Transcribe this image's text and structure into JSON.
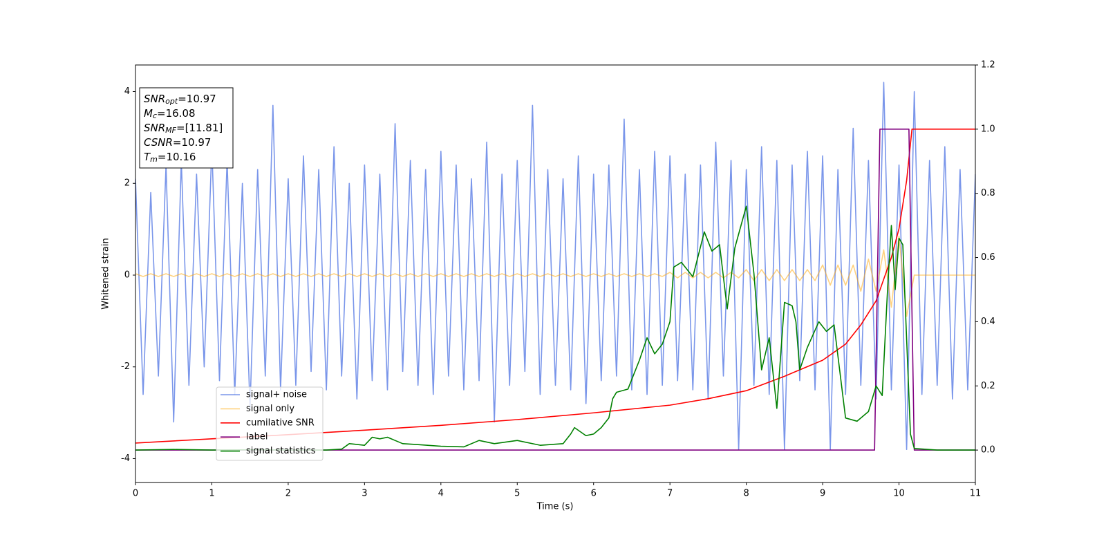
{
  "chart_data": {
    "type": "line",
    "xlabel": "Time (s)",
    "ylabel": "Whitened strain",
    "xlim": [
      0,
      11
    ],
    "xticks": [
      0,
      1,
      2,
      3,
      4,
      5,
      6,
      7,
      8,
      9,
      10,
      11
    ],
    "ylim": [
      -4.52,
      4.58
    ],
    "yticks": [
      -4,
      -2,
      0,
      2,
      4
    ],
    "y2lim": [
      -0.101,
      1.2
    ],
    "y2ticks": [
      {
        "value": 0,
        "label": "0.0"
      },
      0.2,
      0.4,
      0.6,
      0.8,
      {
        "value": 1,
        "label": "1.0"
      },
      1.2
    ],
    "legend_loc": "lower left",
    "annotations": [
      {
        "name": "SNR",
        "sub": "opt",
        "text": "=10.97"
      },
      {
        "name": "M",
        "sub": "c",
        "text": "=16.08"
      },
      {
        "name": "SNR",
        "sub": "MF",
        "text": "=[11.81]"
      },
      {
        "name": "CSNR",
        "text": "=10.97"
      },
      {
        "name": "T",
        "sub": "m",
        "text": "=10.16"
      }
    ],
    "series": [
      {
        "name": "signal+ noise",
        "color": "#4169e1",
        "alpha": 0.7,
        "x": [
          0,
          0.1,
          0.2,
          0.3,
          0.4,
          0.5,
          0.6,
          0.7,
          0.8,
          0.9,
          1,
          1.1,
          1.2,
          1.3,
          1.4,
          1.5,
          1.6,
          1.7,
          1.8,
          1.9,
          2,
          2.1,
          2.2,
          2.3,
          2.4,
          2.5,
          2.6,
          2.7,
          2.8,
          2.9,
          3,
          3.1,
          3.2,
          3.3,
          3.4,
          3.5,
          3.6,
          3.7,
          3.8,
          3.9,
          4,
          4.1,
          4.2,
          4.3,
          4.4,
          4.5,
          4.6,
          4.7,
          4.8,
          4.9,
          5,
          5.1,
          5.2,
          5.3,
          5.4,
          5.5,
          5.6,
          5.7,
          5.8,
          5.9,
          6,
          6.1,
          6.2,
          6.3,
          6.4,
          6.5,
          6.6,
          6.7,
          6.8,
          6.9,
          7,
          7.1,
          7.2,
          7.3,
          7.4,
          7.5,
          7.6,
          7.7,
          7.8,
          7.9,
          8,
          8.1,
          8.2,
          8.3,
          8.4,
          8.5,
          8.6,
          8.7,
          8.8,
          8.9,
          9,
          9.1,
          9.2,
          9.3,
          9.4,
          9.5,
          9.6,
          9.7,
          9.8,
          9.9,
          10,
          10.1,
          10.2,
          10.3,
          10.4,
          10.5,
          10.6,
          10.7,
          10.8,
          10.9,
          11
        ],
        "values": [
          2.1,
          -2.6,
          1.8,
          -2.2,
          2.4,
          -3.2,
          2.5,
          -2.4,
          2.2,
          -2.0,
          2.8,
          -2.3,
          2.5,
          -2.6,
          2.0,
          -2.9,
          2.3,
          -2.2,
          3.7,
          -2.5,
          2.1,
          -2.4,
          2.6,
          -2.1,
          2.3,
          -2.5,
          2.8,
          -2.2,
          2.0,
          -2.7,
          2.4,
          -2.3,
          2.2,
          -2.5,
          3.3,
          -2.1,
          2.5,
          -2.4,
          2.3,
          -2.6,
          2.7,
          -2.2,
          2.4,
          -2.5,
          2.1,
          -2.3,
          2.9,
          -3.2,
          2.2,
          -2.4,
          2.5,
          -2.1,
          3.7,
          -2.6,
          2.3,
          -2.4,
          2.1,
          -2.5,
          2.6,
          -2.8,
          2.2,
          -2.3,
          2.4,
          -2.2,
          3.4,
          -2.5,
          2.3,
          -2.6,
          2.7,
          -2.4,
          2.6,
          -2.3,
          2.2,
          -2.5,
          2.4,
          -2.7,
          2.9,
          -2.2,
          2.5,
          -3.8,
          2.3,
          -2.4,
          2.8,
          -2.6,
          2.5,
          -3.8,
          2.4,
          -2.3,
          2.7,
          -2.5,
          2.6,
          -3.8,
          2.3,
          -2.6,
          3.2,
          -2.4,
          2.5,
          -2.7,
          4.2,
          -2.5,
          2.4,
          -3.8,
          4.0,
          -2.6,
          2.5,
          -2.4,
          2.8,
          -2.7,
          2.3,
          -2.5,
          2.2
        ]
      },
      {
        "name": "signal only",
        "color": "#ffa500",
        "alpha": 0.5,
        "x": [
          0,
          0.1,
          0.2,
          0.3,
          0.4,
          0.5,
          0.6,
          0.7,
          0.8,
          0.9,
          1,
          1.1,
          1.2,
          1.3,
          1.4,
          1.5,
          1.6,
          1.7,
          1.8,
          1.9,
          2,
          2.1,
          2.2,
          2.3,
          2.4,
          2.5,
          2.6,
          2.7,
          2.8,
          2.9,
          3,
          3.1,
          3.2,
          3.3,
          3.4,
          3.5,
          3.6,
          3.7,
          3.8,
          3.9,
          4,
          4.1,
          4.2,
          4.3,
          4.4,
          4.5,
          4.6,
          4.7,
          4.8,
          4.9,
          5,
          5.1,
          5.2,
          5.3,
          5.4,
          5.5,
          5.6,
          5.7,
          5.8,
          5.9,
          6,
          6.1,
          6.2,
          6.3,
          6.4,
          6.5,
          6.6,
          6.7,
          6.8,
          6.9,
          7,
          7.1,
          7.2,
          7.3,
          7.4,
          7.5,
          7.6,
          7.7,
          7.8,
          7.9,
          8,
          8.1,
          8.2,
          8.3,
          8.4,
          8.5,
          8.6,
          8.7,
          8.8,
          8.9,
          9,
          9.1,
          9.2,
          9.3,
          9.4,
          9.5,
          9.6,
          9.7,
          9.8,
          9.9,
          10,
          10.1,
          10.2,
          10.3,
          10.4,
          10.5,
          10.6,
          10.7,
          10.8,
          10.9,
          11
        ],
        "values": [
          0.03,
          -0.03,
          0.03,
          -0.03,
          0.03,
          -0.03,
          0.03,
          -0.03,
          0.03,
          -0.03,
          0.03,
          -0.03,
          0.03,
          -0.03,
          0.03,
          -0.03,
          0.03,
          -0.03,
          0.03,
          -0.03,
          0.03,
          -0.03,
          0.03,
          -0.03,
          0.03,
          -0.03,
          0.03,
          -0.03,
          0.03,
          -0.03,
          0.03,
          -0.03,
          0.03,
          -0.03,
          0.03,
          -0.03,
          0.03,
          -0.03,
          0.03,
          -0.03,
          0.03,
          -0.03,
          0.03,
          -0.03,
          0.03,
          -0.03,
          0.03,
          -0.03,
          0.03,
          -0.03,
          0.03,
          -0.03,
          0.03,
          -0.03,
          0.03,
          -0.03,
          0.03,
          -0.03,
          0.03,
          -0.03,
          0.03,
          -0.03,
          0.03,
          -0.03,
          0.03,
          -0.03,
          0.03,
          -0.03,
          0.03,
          -0.03,
          0.06,
          -0.06,
          0.06,
          -0.06,
          0.06,
          -0.06,
          0.06,
          -0.06,
          0.06,
          -0.06,
          0.12,
          -0.12,
          0.12,
          -0.12,
          0.12,
          -0.12,
          0.12,
          -0.12,
          0.12,
          -0.12,
          0.22,
          -0.22,
          0.22,
          -0.22,
          0.22,
          -0.35,
          0.35,
          -0.35,
          0.55,
          -0.7,
          0.85,
          -0.9,
          0,
          0,
          0,
          0,
          0,
          0,
          0,
          0,
          0
        ]
      },
      {
        "name": "cumilative SNR",
        "color": "#ff0000",
        "axis": "y2",
        "x": [
          0,
          1,
          2,
          3,
          4,
          5,
          6,
          7,
          7.5,
          8,
          8.5,
          9,
          9.3,
          9.5,
          9.7,
          9.9,
          10,
          10.1,
          10.17,
          11
        ],
        "values": [
          0.022,
          0.035,
          0.048,
          0.062,
          0.077,
          0.095,
          0.116,
          0.14,
          0.16,
          0.185,
          0.23,
          0.28,
          0.33,
          0.39,
          0.465,
          0.6,
          0.69,
          0.84,
          1,
          1
        ]
      },
      {
        "name": "label",
        "color": "#800080",
        "axis": "y2",
        "x": [
          0,
          9.68,
          9.75,
          10.13,
          10.2,
          11
        ],
        "values": [
          0,
          0,
          1,
          1,
          0,
          0
        ]
      },
      {
        "name": "signal statistics",
        "color": "#008000",
        "axis": "y2",
        "x": [
          0,
          0.5,
          1,
          1.5,
          2,
          2.5,
          2.7,
          2.8,
          3,
          3.1,
          3.2,
          3.3,
          3.4,
          3.5,
          3.7,
          4,
          4.3,
          4.5,
          4.7,
          5,
          5.3,
          5.6,
          5.7,
          5.75,
          5.9,
          6,
          6.1,
          6.2,
          6.25,
          6.3,
          6.45,
          6.5,
          6.6,
          6.7,
          6.8,
          6.9,
          7,
          7.05,
          7.15,
          7.3,
          7.45,
          7.55,
          7.65,
          7.75,
          7.85,
          8,
          8.1,
          8.2,
          8.3,
          8.4,
          8.5,
          8.6,
          8.65,
          8.7,
          8.8,
          8.95,
          9.05,
          9.15,
          9.3,
          9.45,
          9.6,
          9.7,
          9.78,
          9.85,
          9.9,
          9.95,
          10,
          10.05,
          10.15,
          10.2,
          10.5,
          11
        ],
        "values": [
          0,
          0.002,
          0,
          0.001,
          0,
          0,
          0.003,
          0.02,
          0.015,
          0.04,
          0.035,
          0.04,
          0.03,
          0.02,
          0.017,
          0.012,
          0.01,
          0.03,
          0.02,
          0.03,
          0.015,
          0.02,
          0.05,
          0.07,
          0.045,
          0.05,
          0.07,
          0.1,
          0.16,
          0.18,
          0.19,
          0.22,
          0.28,
          0.35,
          0.3,
          0.33,
          0.4,
          0.57,
          0.585,
          0.54,
          0.68,
          0.62,
          0.64,
          0.44,
          0.63,
          0.76,
          0.55,
          0.25,
          0.35,
          0.13,
          0.46,
          0.45,
          0.4,
          0.25,
          0.32,
          0.4,
          0.37,
          0.39,
          0.1,
          0.09,
          0.12,
          0.2,
          0.17,
          0.5,
          0.7,
          0.5,
          0.66,
          0.64,
          0.05,
          0.005,
          0,
          0
        ]
      }
    ]
  }
}
